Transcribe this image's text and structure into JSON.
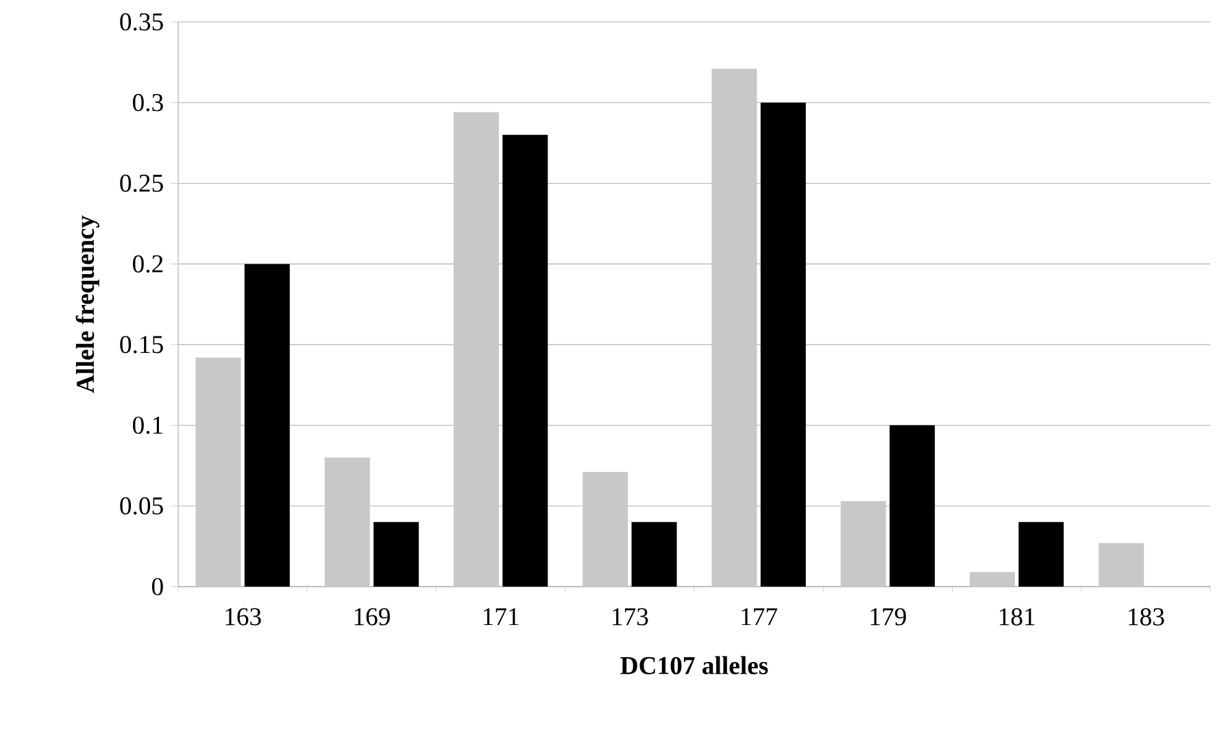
{
  "chart_data": {
    "type": "bar",
    "xlabel": "DC107 alleles",
    "ylabel": "Allele frequency",
    "categories": [
      "163",
      "169",
      "171",
      "173",
      "177",
      "179",
      "181",
      "183"
    ],
    "series": [
      {
        "color": "#c8c8c8",
        "values": [
          0.142,
          0.08,
          0.294,
          0.071,
          0.321,
          0.053,
          0.009,
          0.027
        ]
      },
      {
        "color": "#000000",
        "values": [
          0.2,
          0.04,
          0.28,
          0.04,
          0.3,
          0.1,
          0.04,
          null
        ]
      }
    ],
    "ylim": [
      0,
      0.35
    ],
    "yticks": [
      0,
      0.05,
      0.1,
      0.15,
      0.2,
      0.25,
      0.3,
      0.35
    ],
    "grid": "y"
  }
}
